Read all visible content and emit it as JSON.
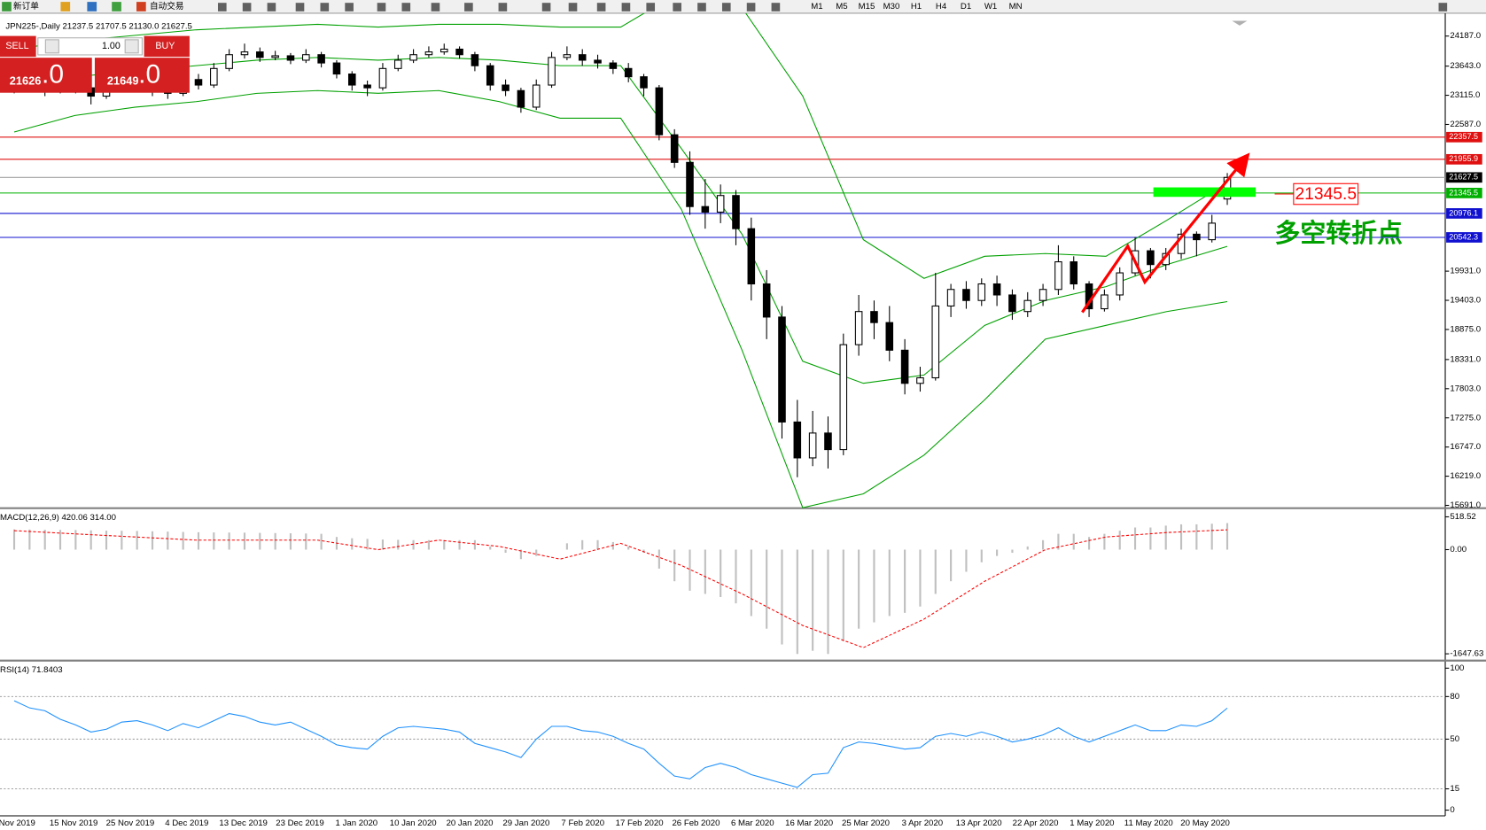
{
  "toolbar": {
    "new_order": "新订单",
    "auto_trading": "自动交易",
    "timeframes": [
      "M1",
      "M5",
      "M15",
      "M30",
      "H1",
      "H4",
      "D1",
      "W1",
      "MN"
    ]
  },
  "trade_panel": {
    "sell": "SELL",
    "buy": "BUY",
    "lots": "1.00",
    "sell_price": "21626",
    "sell_fraction": ".0",
    "buy_price": "21649",
    "buy_fraction": ".0"
  },
  "chart_data": [
    {
      "type": "candlestick",
      "title": "JPN225-,Daily 21237.5 21707.5 21130.0 21627.5",
      "open": [
        23250,
        23300,
        23350,
        23200,
        23400,
        23250,
        23100,
        23300,
        23450,
        23380,
        23200,
        23150,
        23400,
        23300,
        23600,
        23850,
        23900,
        23800,
        23830,
        23750,
        23850,
        23700,
        23500,
        23300,
        23250,
        23600,
        23750,
        23850,
        23900,
        23950,
        23850,
        23650,
        23300,
        23200,
        22900,
        23300,
        23800,
        23850,
        23750,
        23700,
        23600,
        23450,
        23250,
        22400,
        21900,
        21100,
        21000,
        21300,
        20700,
        19700,
        19100,
        17200,
        16550,
        17000,
        16700,
        18600,
        19200,
        19000,
        18500,
        17900,
        18000,
        19300,
        19600,
        19400,
        19700,
        19500,
        19200,
        19400,
        19600,
        20100,
        19700,
        19250,
        19500,
        19900,
        20300,
        20050,
        20250,
        20600,
        20500,
        21237.5
      ],
      "high": [
        23420,
        23450,
        23420,
        23500,
        23480,
        23330,
        23400,
        23550,
        23520,
        23450,
        23300,
        23480,
        23500,
        23700,
        23950,
        24050,
        23980,
        23920,
        23880,
        23950,
        23900,
        23750,
        23550,
        23380,
        23700,
        23850,
        23950,
        24000,
        24050,
        24000,
        23900,
        23700,
        23400,
        23250,
        23400,
        23900,
        24000,
        23950,
        23850,
        23750,
        23700,
        23500,
        23300,
        22500,
        22100,
        21600,
        21500,
        21400,
        20900,
        19950,
        19300,
        17600,
        17400,
        17300,
        18800,
        19500,
        19400,
        19300,
        18700,
        18200,
        19900,
        19700,
        19750,
        19800,
        19850,
        19600,
        19550,
        19700,
        20400,
        20200,
        19750,
        19600,
        20000,
        20550,
        20350,
        20350,
        20700,
        20650,
        20950,
        21707.5
      ],
      "low": [
        23150,
        23200,
        23100,
        23150,
        23150,
        22950,
        23050,
        23250,
        23300,
        23100,
        23050,
        23100,
        23220,
        23250,
        23550,
        23780,
        23720,
        23750,
        23680,
        23700,
        23620,
        23420,
        23200,
        23100,
        23200,
        23550,
        23700,
        23800,
        23850,
        23780,
        23550,
        23200,
        23100,
        22800,
        22850,
        23250,
        23750,
        23650,
        23600,
        23500,
        23350,
        23100,
        22300,
        21800,
        20950,
        20700,
        20800,
        20400,
        19400,
        18700,
        16900,
        16200,
        16400,
        16358,
        16600,
        18400,
        18700,
        18300,
        17700,
        17750,
        17950,
        19100,
        19250,
        19300,
        19300,
        19050,
        19100,
        19300,
        19500,
        19600,
        19100,
        19200,
        19400,
        19850,
        19800,
        19950,
        20150,
        20200,
        20450,
        21130
      ],
      "close": [
        23300,
        23350,
        23200,
        23400,
        23250,
        23100,
        23300,
        23450,
        23380,
        23200,
        23150,
        23400,
        23300,
        23600,
        23850,
        23900,
        23800,
        23830,
        23750,
        23850,
        23700,
        23500,
        23300,
        23250,
        23600,
        23750,
        23850,
        23900,
        23950,
        23850,
        23650,
        23300,
        23200,
        22900,
        23300,
        23800,
        23850,
        23750,
        23700,
        23600,
        23450,
        23250,
        22400,
        21900,
        21100,
        21000,
        21300,
        20700,
        19700,
        19100,
        17200,
        16550,
        17000,
        16700,
        18600,
        19200,
        19000,
        18500,
        17900,
        18000,
        19300,
        19600,
        19400,
        19700,
        19500,
        19200,
        19400,
        19600,
        20100,
        19700,
        19250,
        19500,
        19900,
        20300,
        20050,
        20250,
        20600,
        20500,
        20800,
        21627.5
      ],
      "bands": [
        {
          "color": "#00a000",
          "values": [
            23950,
            24100,
            24200,
            24300,
            24350,
            24400,
            24350,
            24400,
            24400,
            24350,
            24350,
            25000,
            24700,
            23100,
            20500,
            19800,
            20200,
            20250,
            20200,
            20850,
            21530
          ]
        },
        {
          "color": "#00a000",
          "values": [
            23300,
            23450,
            23550,
            23650,
            23750,
            23800,
            23750,
            23800,
            23750,
            23650,
            23650,
            22150,
            20600,
            18300,
            17900,
            18050,
            18950,
            19400,
            19650,
            20050,
            20380
          ]
        },
        {
          "color": "#00a000",
          "values": [
            22450,
            22750,
            22900,
            23000,
            23150,
            23200,
            23150,
            23200,
            23000,
            22700,
            22700,
            21050,
            18500,
            15650,
            15900,
            16600,
            17600,
            18700,
            18950,
            19200,
            19380
          ]
        }
      ],
      "levels": [
        {
          "value": 22357.5,
          "color": "#e01010"
        },
        {
          "value": 21955.9,
          "color": "#e01010"
        },
        {
          "value": 21627.5,
          "color": "#000000"
        },
        {
          "value": 21345.5,
          "color": "#00b000"
        },
        {
          "value": 20976.1,
          "color": "#1010d0"
        },
        {
          "value": 20542.3,
          "color": "#1010d0"
        }
      ],
      "annotations": {
        "price_box": "21345.5",
        "note": "多空转折点"
      },
      "ylim": [
        15639,
        24600
      ],
      "yticks": [
        {
          "value": 24187,
          "label": "24187.0"
        },
        {
          "value": 23643,
          "label": "23643.0"
        },
        {
          "value": 23115,
          "label": "23115.0"
        },
        {
          "value": 22587,
          "label": "22587.0"
        },
        {
          "value": 19931,
          "label": "19931.0"
        },
        {
          "value": 19403,
          "label": "19403.0"
        },
        {
          "value": 18875,
          "label": "18875.0"
        },
        {
          "value": 18331,
          "label": "18331.0"
        },
        {
          "value": 17803,
          "label": "17803.0"
        },
        {
          "value": 17275,
          "label": "17275.0"
        },
        {
          "value": 16747,
          "label": "16747.0"
        },
        {
          "value": 16219,
          "label": "16219.0"
        },
        {
          "value": 15691,
          "label": "15691.0"
        }
      ],
      "date_labels": [
        "Nov 2019",
        "15 Nov 2019",
        "25 Nov 2019",
        "4 Dec 2019",
        "13 Dec 2019",
        "23 Dec 2019",
        "1 Jan 2020",
        "10 Jan 2020",
        "20 Jan 2020",
        "29 Jan 2020",
        "7 Feb 2020",
        "17 Feb 2020",
        "26 Feb 2020",
        "6 Mar 2020",
        "16 Mar 2020",
        "25 Mar 2020",
        "3 Apr 2020",
        "13 Apr 2020",
        "22 Apr 2020",
        "1 May 2020",
        "11 May 2020",
        "20 May 2020"
      ]
    },
    {
      "type": "macd",
      "title": "MACD(12,26,9) 420.06 314.00",
      "values": [
        320,
        318,
        315,
        312,
        310,
        305,
        300,
        298,
        295,
        290,
        285,
        280,
        275,
        272,
        270,
        268,
        265,
        262,
        258,
        255,
        250,
        200,
        180,
        170,
        160,
        155,
        150,
        150,
        150,
        150,
        150,
        50,
        -50,
        -150,
        -100,
        0,
        100,
        150,
        150,
        120,
        50,
        -50,
        -300,
        -500,
        -650,
        -700,
        -750,
        -850,
        -1050,
        -1250,
        -1500,
        -1650,
        -1600,
        -1650,
        -1450,
        -1250,
        -1150,
        -1050,
        -1000,
        -900,
        -700,
        -500,
        -350,
        -200,
        -100,
        -50,
        50,
        150,
        250,
        250,
        200,
        250,
        300,
        350,
        350,
        380,
        400,
        400,
        410,
        420.06
      ],
      "signal": {
        "color": "#ff0000",
        "values": [
          300,
          250,
          200,
          150,
          150,
          150,
          0,
          150,
          50,
          -150,
          100,
          -250,
          -700,
          -1200,
          -1550,
          -1100,
          -500,
          0,
          200,
          270,
          314.0
        ]
      },
      "ylim": [
        -1740,
        610
      ],
      "yticks": [
        518.52,
        {
          "value": 0,
          "label": "0.00"
        },
        -1647.63
      ]
    },
    {
      "type": "line",
      "title": "RSI(14) 71.8403",
      "color": "#1e90ff",
      "values": [
        77,
        72,
        70,
        64,
        60,
        55,
        57,
        62,
        63,
        60,
        56,
        61,
        58,
        63,
        68,
        66,
        62,
        60,
        62,
        57,
        52,
        46,
        44,
        43,
        52,
        58,
        59,
        58,
        57,
        55,
        47,
        44,
        41,
        37,
        50,
        59,
        59,
        56,
        55,
        52,
        47,
        43,
        33,
        24,
        22,
        30,
        33,
        30,
        25,
        22,
        19,
        16,
        25,
        26,
        44,
        48,
        47,
        45,
        43,
        44,
        52,
        54,
        52,
        55,
        52,
        48,
        50,
        53,
        58,
        52,
        48,
        52,
        56,
        60,
        56,
        56,
        60,
        59,
        63,
        71.8403
      ],
      "ylim": [
        0,
        100
      ],
      "yticks": [
        100,
        80,
        50,
        15,
        0
      ]
    }
  ]
}
